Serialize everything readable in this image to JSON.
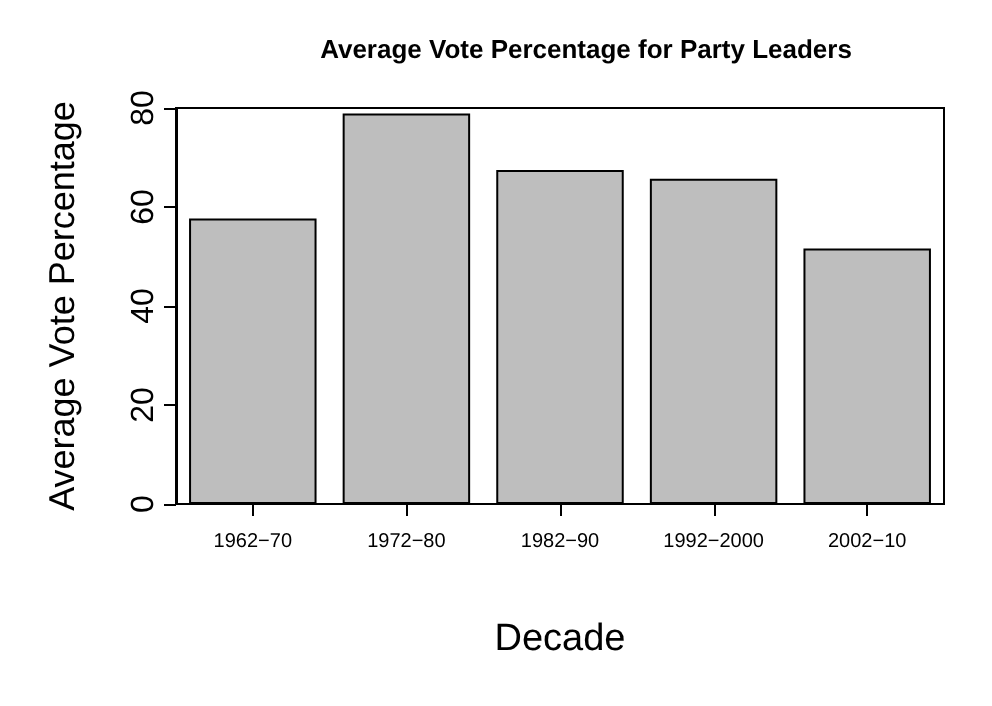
{
  "chart_data": {
    "type": "bar",
    "title": "Average Vote Percentage for Party Leaders",
    "xlabel": "Decade",
    "ylabel": "Average Vote Percentage",
    "categories": [
      "1962−70",
      "1972−80",
      "1982−90",
      "1992−2000",
      "2002−10"
    ],
    "values": [
      57.7,
      78.9,
      67.5,
      65.7,
      51.6
    ],
    "color": "#bebebe",
    "ylim": [
      0,
      80
    ],
    "yticks": [
      0,
      20,
      40,
      60,
      80
    ],
    "grid": false
  }
}
